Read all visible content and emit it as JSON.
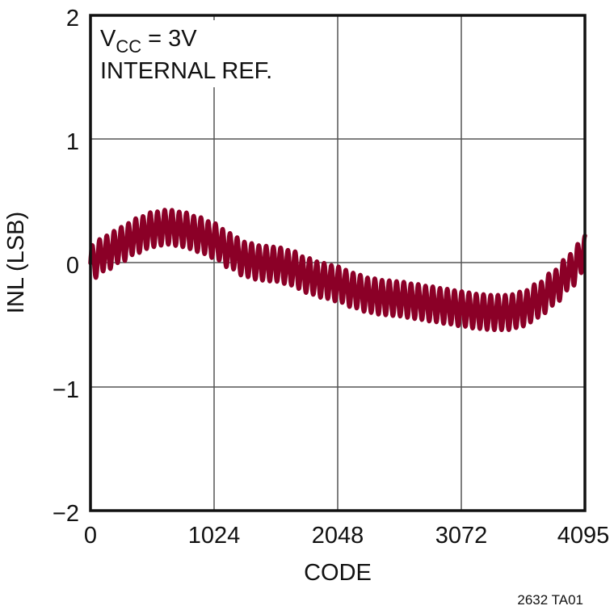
{
  "chart_data": {
    "type": "line",
    "title": "",
    "xlabel": "CODE",
    "ylabel": "INL (LSB)",
    "xlim": [
      0,
      4095
    ],
    "ylim": [
      -2,
      2
    ],
    "x_ticks": [
      0,
      1024,
      2048,
      3072,
      4095
    ],
    "x_tick_labels": [
      "0",
      "1024",
      "2048",
      "3072",
      "4095"
    ],
    "y_ticks": [
      2,
      1,
      0,
      -1,
      -2
    ],
    "y_tick_labels": [
      "2",
      "1",
      "0",
      "−1",
      "−2"
    ],
    "grid": true,
    "legend": null,
    "annotations": [
      {
        "text_main": "V",
        "text_sub": "CC",
        "text_rest": " = 3V"
      },
      {
        "text": "INTERNAL REF."
      }
    ],
    "footnote": "2632 TA01",
    "series": [
      {
        "name": "INL",
        "color": "#8B0027",
        "description": "Trend (center of band) with superimposed periodic ripple",
        "trend": {
          "x": [
            0,
            128,
            256,
            384,
            512,
            640,
            768,
            896,
            1024,
            1152,
            1280,
            1408,
            1536,
            1664,
            1792,
            1920,
            2048,
            2176,
            2304,
            2432,
            2560,
            2688,
            2816,
            2944,
            3072,
            3200,
            3328,
            3456,
            3584,
            3712,
            3840,
            3968,
            4095
          ],
          "y": [
            0.0,
            0.08,
            0.15,
            0.22,
            0.27,
            0.29,
            0.27,
            0.23,
            0.18,
            0.1,
            0.03,
            0.0,
            -0.01,
            -0.04,
            -0.1,
            -0.14,
            -0.17,
            -0.22,
            -0.26,
            -0.28,
            -0.29,
            -0.31,
            -0.33,
            -0.35,
            -0.37,
            -0.39,
            -0.4,
            -0.4,
            -0.37,
            -0.3,
            -0.2,
            -0.07,
            0.08
          ]
        },
        "ripple_amplitude": 0.14,
        "ripple_period_codes": 60
      }
    ]
  },
  "annotation": {
    "vcc_main": "V",
    "vcc_sub": "CC",
    "vcc_rest": " = 3V",
    "ref": "INTERNAL REF."
  },
  "axes": {
    "xlabel": "CODE",
    "ylabel": "INL (LSB)",
    "x_tick_labels": [
      "0",
      "1024",
      "2048",
      "3072",
      "4095"
    ],
    "y_tick_labels": [
      "2",
      "1",
      "0",
      "−1",
      "−2"
    ]
  },
  "footnote": "2632 TA01"
}
